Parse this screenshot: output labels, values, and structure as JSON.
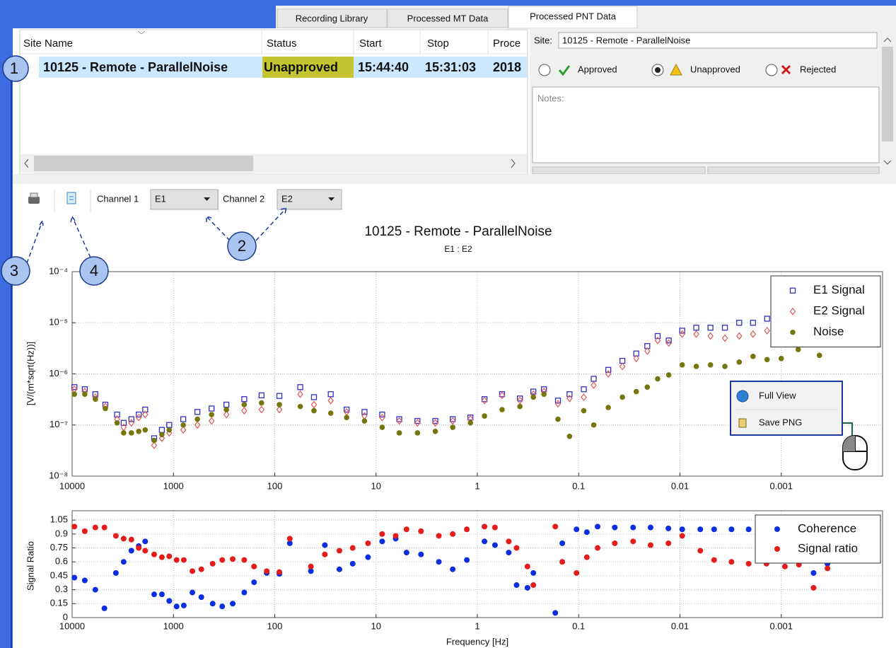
{
  "tabs": [
    "Recording Library",
    "Processed MT Data",
    "Processed PNT Data"
  ],
  "table": {
    "headers": [
      "Site Name",
      "Status",
      "Start",
      "Stop",
      "Proce"
    ],
    "rows": [
      [
        "10125 - Remote - ParallelNoise",
        "Unapproved",
        "15:44:40",
        "15:31:03",
        "2018"
      ]
    ]
  },
  "details": {
    "site_label": "Site:",
    "site": "10125 - Remote - ParallelNoise",
    "options": [
      "Approved",
      "Unapproved",
      "Rejected"
    ],
    "notes": "Notes:"
  },
  "toolbar": {
    "channel1_label": "Channel 1",
    "channel1": "E1",
    "channel2_label": "Channel 2",
    "channel2": "E2"
  },
  "callouts": [
    "1",
    "2",
    "3",
    "4"
  ],
  "context_menu": [
    "Full View",
    "Save PNG"
  ],
  "chart_data": [
    {
      "type": "scatter",
      "title": "10125 - Remote - ParallelNoise",
      "subtitle": "E1 : E2",
      "y_label": "[V/(m*sqrt(Hz))]",
      "x": [
        9500,
        7500,
        5900,
        4700,
        3600,
        3100,
        2600,
        2200,
        1900,
        1550,
        1300,
        1100,
        800,
        580,
        420,
        300,
        200,
        135,
        90,
        56,
        41,
        28,
        19.5,
        13,
        8.7,
        5.9,
        3.9,
        2.6,
        1.75,
        1.17,
        0.85,
        0.57,
        0.38,
        0.28,
        0.22,
        0.16,
        0.123,
        0.089,
        0.071,
        0.051,
        0.037,
        0.027,
        0.021,
        0.0166,
        0.0129,
        0.0095,
        0.0069,
        0.005,
        0.0036,
        0.0026,
        0.0019,
        0.00138,
        0.001,
        0.00068,
        0.00042
      ],
      "series": [
        {
          "name": "E1 Signal",
          "color": "#3030c8",
          "marker": "square",
          "values": [
            5.5e-07,
            5e-07,
            4e-07,
            2.5e-07,
            1.6e-07,
            1.1e-07,
            1.3e-07,
            1.6e-07,
            2e-07,
            5.5e-08,
            8e-08,
            1e-07,
            1.3e-07,
            1.8e-07,
            2.1e-07,
            2.5e-07,
            3.2e-07,
            3.8e-07,
            3.7e-07,
            5.5e-07,
            3.5e-07,
            4e-07,
            2e-07,
            1.8e-07,
            1.6e-07,
            1.3e-07,
            1.2e-07,
            1.2e-07,
            1.3e-07,
            1.4e-07,
            3.2e-07,
            4e-07,
            3.3e-07,
            4.5e-07,
            5e-07,
            3e-07,
            4e-07,
            5e-07,
            8e-07,
            1.2e-06,
            1.8e-06,
            2.5e-06,
            3.5e-06,
            5.5e-06,
            4.5e-06,
            7e-06,
            8e-06,
            8e-06,
            8e-06,
            1e-05,
            1e-05,
            1.2e-05,
            1.5e-05,
            2e-05,
            2.5e-05
          ]
        },
        {
          "name": "E2 Signal",
          "color": "#e05858",
          "marker": "diamond",
          "values": [
            5e-07,
            4.5e-07,
            3.5e-07,
            2.3e-07,
            1.3e-07,
            9e-08,
            1.1e-07,
            1.4e-07,
            1.6e-07,
            4e-08,
            5.5e-08,
            7e-08,
            8e-08,
            1e-07,
            1.2e-07,
            1.6e-07,
            1.9e-07,
            2e-07,
            2e-07,
            4e-07,
            2.5e-07,
            3e-07,
            1.8e-07,
            1.5e-07,
            1.4e-07,
            1.2e-07,
            1.1e-07,
            1.1e-07,
            1.2e-07,
            1.3e-07,
            3e-07,
            3.8e-07,
            3e-07,
            4e-07,
            4.5e-07,
            2.6e-07,
            3.3e-07,
            3.5e-07,
            6e-07,
            1e-06,
            1.4e-06,
            2e-06,
            2.8e-06,
            4.5e-06,
            4e-06,
            6e-06,
            6e-06,
            5.5e-06,
            5e-06,
            5.5e-06,
            6e-06,
            7e-06,
            8e-06,
            1.2e-05,
            1.5e-05
          ]
        },
        {
          "name": "Noise",
          "color": "#76760e",
          "marker": "circle",
          "values": [
            4e-07,
            4e-07,
            3.2e-07,
            2.1e-07,
            1.1e-07,
            7e-08,
            7e-08,
            7.5e-08,
            8e-08,
            5e-08,
            6.5e-08,
            8e-08,
            1e-07,
            1.3e-07,
            1.6e-07,
            2e-07,
            2.5e-07,
            2.7e-07,
            2.5e-07,
            2.3e-07,
            1.9e-07,
            1.7e-07,
            1.4e-07,
            1.2e-07,
            9e-08,
            7e-08,
            7e-08,
            7.5e-08,
            9e-08,
            1.1e-07,
            1.5e-07,
            2e-07,
            2.3e-07,
            3.5e-07,
            4e-07,
            1.3e-07,
            6e-08,
            1.9e-07,
            1e-07,
            2.2e-07,
            3.5e-07,
            4.5e-07,
            5.5e-07,
            8e-07,
            9.5e-07,
            1.5e-06,
            1.4e-06,
            1.5e-06,
            1.4e-06,
            1.7e-06,
            2.2e-06,
            1.9e-06,
            2e-06,
            3e-06,
            2.3e-06
          ]
        }
      ],
      "xlim": [
        10000,
        0.0001
      ],
      "xticks": [
        10000,
        1000,
        100,
        10,
        1,
        0.1,
        0.01,
        0.001
      ],
      "xscale": "log",
      "ylim": [
        1e-08,
        0.0001
      ],
      "yscale": "log",
      "yticks": [
        {
          "value": 1e-08,
          "label": "10⁻⁸"
        },
        {
          "value": 1e-07,
          "label": "10⁻⁷"
        },
        {
          "value": 1e-06,
          "label": "10⁻⁶"
        },
        {
          "value": 1e-05,
          "label": "10⁻⁵"
        },
        {
          "value": 0.0001,
          "label": "10⁻⁴"
        }
      ],
      "grid": true,
      "legend": "upper right"
    },
    {
      "type": "scatter",
      "y_label": "Signal Ratio",
      "x_label": "Frequency [Hz]",
      "x": [
        9500,
        7500,
        5900,
        4800,
        3700,
        3100,
        2600,
        2200,
        1900,
        1550,
        1300,
        1100,
        930,
        790,
        650,
        530,
        410,
        330,
        260,
        200,
        160,
        120,
        90,
        71,
        44,
        32,
        23,
        17,
        12,
        8.7,
        6.4,
        5,
        3.6,
        2.4,
        1.75,
        1.27,
        0.85,
        0.67,
        0.49,
        0.41,
        0.32,
        0.28,
        0.17,
        0.145,
        0.105,
        0.083,
        0.065,
        0.044,
        0.029,
        0.0195,
        0.013,
        0.0095,
        0.0063,
        0.0046,
        0.0031,
        0.0021,
        0.0014,
        0.00092,
        0.00067,
        0.00048,
        0.00035
      ],
      "series": [
        {
          "name": "Coherence",
          "color": "#0a2ee0",
          "marker": "dot",
          "values": [
            0.43,
            0.4,
            0.3,
            0.1,
            0.48,
            0.6,
            0.72,
            0.77,
            0.82,
            0.25,
            0.25,
            0.18,
            0.12,
            0.13,
            0.27,
            0.22,
            0.15,
            0.12,
            0.15,
            0.27,
            0.38,
            0.48,
            0.47,
            0.8,
            0.5,
            0.78,
            0.52,
            0.58,
            0.65,
            0.82,
            0.85,
            0.7,
            0.68,
            0.6,
            0.52,
            0.62,
            0.82,
            0.78,
            0.7,
            0.35,
            0.32,
            0.48,
            0.05,
            0.8,
            0.95,
            0.92,
            0.98,
            0.97,
            0.97,
            0.97,
            0.96,
            0.95,
            0.95,
            0.95,
            0.95,
            0.95,
            0.95,
            0.95,
            0.97,
            0.48,
            0.58
          ]
        },
        {
          "name": "Signal ratio",
          "color": "#e41c1c",
          "marker": "dot",
          "values": [
            0.98,
            0.93,
            0.97,
            0.97,
            0.88,
            0.85,
            0.84,
            0.75,
            0.72,
            0.68,
            0.65,
            0.66,
            0.62,
            0.62,
            0.5,
            0.52,
            0.58,
            0.62,
            0.63,
            0.62,
            0.55,
            0.5,
            0.49,
            0.85,
            0.55,
            0.68,
            0.72,
            0.75,
            0.8,
            0.9,
            0.88,
            0.95,
            0.93,
            0.88,
            0.9,
            0.95,
            0.98,
            0.97,
            0.82,
            0.75,
            0.55,
            0.35,
            0.98,
            0.6,
            0.48,
            0.65,
            0.75,
            0.8,
            0.82,
            0.78,
            0.8,
            0.88,
            0.72,
            0.62,
            0.6,
            0.58,
            0.58,
            0.55,
            0.57,
            0.32,
            0.53
          ]
        }
      ],
      "xlim": [
        10000,
        0.0001
      ],
      "xticks": [
        10000,
        1000,
        100,
        10,
        1,
        0.1,
        0.01,
        0.001
      ],
      "xscale": "log",
      "ylim": [
        0,
        1.15
      ],
      "yticks": [
        0,
        0.15,
        0.3,
        0.45,
        0.6,
        0.75,
        0.9,
        1.05
      ],
      "grid": true,
      "legend": "upper right"
    }
  ]
}
